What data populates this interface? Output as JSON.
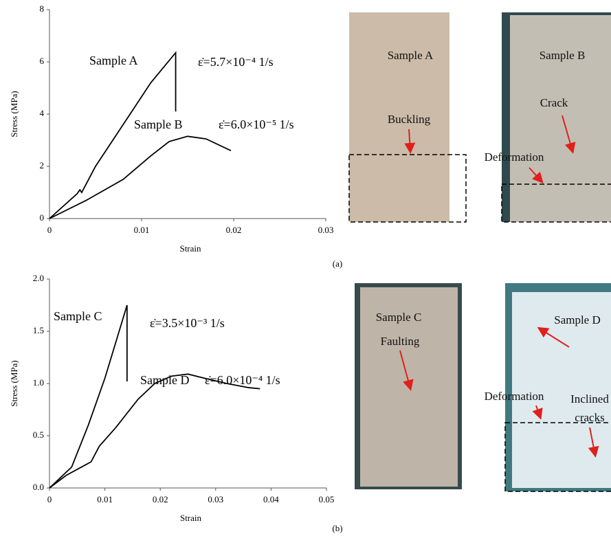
{
  "chart_data": [
    {
      "type": "line",
      "panel_label": "(a)",
      "x_label": "Strain",
      "y_label": "Stress (MPa)",
      "xlim": [
        0,
        0.03
      ],
      "xticks": [
        0,
        0.01,
        0.02,
        0.03
      ],
      "ylim": [
        0,
        8
      ],
      "yticks": [
        0,
        2,
        4,
        6,
        8
      ],
      "series": [
        {
          "name": "Sample A",
          "color": "#000000",
          "x": [
            0,
            0.003,
            0.0033,
            0.0035,
            0.005,
            0.008,
            0.011,
            0.0137,
            0.0137
          ],
          "values": [
            0,
            0.95,
            1.1,
            1.0,
            2.0,
            3.6,
            5.2,
            6.35,
            4.1
          ]
        },
        {
          "name": "Sample B",
          "color": "#000000",
          "x": [
            0,
            0.004,
            0.008,
            0.011,
            0.013,
            0.015,
            0.017,
            0.0197
          ],
          "values": [
            0,
            0.7,
            1.5,
            2.4,
            2.95,
            3.15,
            3.05,
            2.6
          ]
        }
      ],
      "annotations": [
        "ε̇=5.7×10⁻⁴ 1/s",
        "ε̇=6.0×10⁻⁵ 1/s"
      ]
    },
    {
      "type": "line",
      "panel_label": "(b)",
      "x_label": "Strain",
      "y_label": "Stress (MPa)",
      "xlim": [
        0,
        0.05
      ],
      "xticks": [
        0,
        0.01,
        0.02,
        0.03,
        0.04,
        0.05
      ],
      "ylim": [
        0,
        2
      ],
      "yticks": [
        {
          "value": 0,
          "label": "0.0"
        },
        0.5,
        {
          "value": 1,
          "label": "1.0"
        },
        1.5,
        {
          "value": 2,
          "label": "2.0"
        }
      ],
      "series": [
        {
          "name": "Sample C",
          "color": "#000000",
          "x": [
            0,
            0.004,
            0.007,
            0.01,
            0.012,
            0.014,
            0.014
          ],
          "values": [
            0,
            0.2,
            0.6,
            1.05,
            1.4,
            1.75,
            1.02
          ]
        },
        {
          "name": "Sample D",
          "color": "#000000",
          "x": [
            0,
            0.003,
            0.0075,
            0.009,
            0.012,
            0.016,
            0.019,
            0.022,
            0.025,
            0.028,
            0.032,
            0.036,
            0.038
          ],
          "values": [
            0,
            0.12,
            0.25,
            0.4,
            0.58,
            0.85,
            1.0,
            1.07,
            1.09,
            1.05,
            1.0,
            0.96,
            0.95
          ]
        }
      ],
      "annotations": [
        "ε̇=3.5×10⁻³ 1/s",
        "ε̇=6.0×10⁻⁴ 1/s"
      ]
    }
  ],
  "photos": [
    {
      "texts": [
        "Sample A",
        "Buckling"
      ]
    },
    {
      "texts": [
        "Sample B",
        "Crack",
        "Deformation"
      ]
    },
    {
      "texts": [
        "Sample C",
        "Faulting"
      ]
    },
    {
      "texts": [
        "Sample D",
        "Deformation",
        "Inclined",
        "cracks"
      ]
    }
  ]
}
